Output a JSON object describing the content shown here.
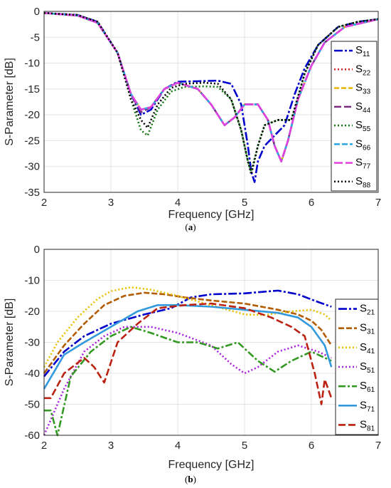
{
  "chart_data": [
    {
      "type": "line",
      "caption_label": "a",
      "xlabel": "Frequency [GHz]",
      "ylabel": "S-Parameter [dB]",
      "xlim": [
        2,
        7
      ],
      "ylim": [
        -35,
        0
      ],
      "xticks": [
        "2",
        "3",
        "4",
        "5",
        "6",
        "7"
      ],
      "yticks": [
        "0",
        "-5",
        "-10",
        "-15",
        "-20",
        "-25",
        "-30",
        "-35"
      ],
      "grid": true,
      "legend_position": "right",
      "series": [
        {
          "name": "S11",
          "legend_main": "S",
          "legend_sub": "11",
          "color": "#0000cc",
          "dash": "12,3,3,3",
          "x": [
            2,
            2.5,
            2.8,
            3.1,
            3.3,
            3.45,
            3.6,
            3.8,
            4.0,
            4.3,
            4.6,
            4.8,
            4.95,
            5.05,
            5.1,
            5.15,
            5.2,
            5.3,
            5.45,
            5.6,
            5.75,
            5.9,
            6.1,
            6.4,
            6.7,
            7.0
          ],
          "y": [
            -0.3,
            -0.7,
            -2,
            -8,
            -16,
            -20,
            -19,
            -15,
            -13.6,
            -13.5,
            -13.4,
            -14,
            -18,
            -26,
            -31,
            -33,
            -29,
            -26,
            -24,
            -22,
            -16,
            -11,
            -6.5,
            -3,
            -2,
            -1.5
          ]
        },
        {
          "name": "S22",
          "legend_main": "S",
          "legend_sub": "22",
          "color": "#cc2222",
          "dash": "2,3",
          "x": [
            2,
            2.5,
            2.8,
            3.1,
            3.3,
            3.45,
            3.6,
            3.8,
            4.0,
            4.3,
            4.5,
            4.7,
            4.85,
            5.0,
            5.2,
            5.35,
            5.45,
            5.55,
            5.65,
            5.8,
            6.0,
            6.2,
            6.5,
            7.0
          ],
          "y": [
            -0.3,
            -0.8,
            -2.2,
            -8,
            -16,
            -19,
            -18.5,
            -15,
            -13.8,
            -15,
            -18,
            -22,
            -20.5,
            -18,
            -18,
            -21,
            -26,
            -29,
            -25,
            -17,
            -10.5,
            -6,
            -3,
            -1.5
          ]
        },
        {
          "name": "S33",
          "legend_main": "S",
          "legend_sub": "33",
          "color": "#e8b400",
          "dash": "7,3",
          "x": [
            2,
            2.5,
            2.8,
            3.1,
            3.3,
            3.45,
            3.6,
            3.8,
            4.0,
            4.3,
            4.5,
            4.7,
            4.85,
            5.0,
            5.2,
            5.35,
            5.45,
            5.55,
            5.65,
            5.8,
            6.0,
            6.2,
            6.5,
            7.0
          ],
          "y": [
            -0.3,
            -0.8,
            -2.2,
            -8,
            -16,
            -19,
            -18.5,
            -15,
            -13.8,
            -15,
            -18,
            -22,
            -20.5,
            -18,
            -18,
            -21,
            -26,
            -29,
            -25,
            -17,
            -10.5,
            -6,
            -3,
            -1.5
          ]
        },
        {
          "name": "S44",
          "legend_main": "S",
          "legend_sub": "44",
          "color": "#7a2a80",
          "dash": "10,4",
          "x": [
            2,
            2.5,
            2.8,
            3.1,
            3.3,
            3.45,
            3.6,
            3.8,
            4.0,
            4.3,
            4.5,
            4.7,
            4.85,
            5.0,
            5.2,
            5.35,
            5.45,
            5.55,
            5.65,
            5.8,
            6.0,
            6.2,
            6.5,
            7.0
          ],
          "y": [
            -0.3,
            -0.8,
            -2.2,
            -8,
            -16,
            -19.5,
            -18.5,
            -15,
            -13.8,
            -15,
            -18,
            -22,
            -20.5,
            -18,
            -18,
            -21,
            -26,
            -29,
            -25,
            -17,
            -10.5,
            -6,
            -3,
            -1.5
          ]
        },
        {
          "name": "S55",
          "legend_main": "S",
          "legend_sub": "55",
          "color": "#117711",
          "dash": "2,3",
          "x": [
            2,
            2.5,
            2.8,
            3.1,
            3.3,
            3.45,
            3.55,
            3.7,
            3.9,
            4.1,
            4.4,
            4.6,
            4.8,
            4.95,
            5.05,
            5.1,
            5.2,
            5.3,
            5.5,
            5.7,
            5.9,
            6.1,
            6.4,
            6.7,
            7.0
          ],
          "y": [
            -0.3,
            -0.7,
            -2,
            -8,
            -17,
            -23,
            -24,
            -19,
            -15.5,
            -14.6,
            -14.5,
            -14.6,
            -17,
            -23,
            -29,
            -31,
            -26,
            -22,
            -21,
            -21,
            -12,
            -6.5,
            -3,
            -2,
            -1.5
          ]
        },
        {
          "name": "S66",
          "legend_main": "S",
          "legend_sub": "66",
          "color": "#2aa8e0",
          "dash": "8,3",
          "x": [
            2,
            2.5,
            2.8,
            3.1,
            3.3,
            3.45,
            3.6,
            3.8,
            4.0,
            4.3,
            4.5,
            4.7,
            4.85,
            5.0,
            5.2,
            5.35,
            5.45,
            5.55,
            5.65,
            5.8,
            6.0,
            6.2,
            6.5,
            7.0
          ],
          "y": [
            -0.3,
            -0.8,
            -2.2,
            -8,
            -16,
            -19,
            -18.5,
            -15,
            -13.8,
            -15,
            -18,
            -22,
            -20.5,
            -18,
            -18,
            -21,
            -26,
            -29,
            -25,
            -17,
            -10.5,
            -6,
            -3,
            -1.5
          ]
        },
        {
          "name": "S77",
          "legend_main": "S",
          "legend_sub": "77",
          "color": "#e040e0",
          "dash": "12,4",
          "x": [
            2,
            2.5,
            2.8,
            3.1,
            3.3,
            3.45,
            3.6,
            3.8,
            4.0,
            4.3,
            4.5,
            4.7,
            4.85,
            5.0,
            5.2,
            5.35,
            5.45,
            5.55,
            5.65,
            5.8,
            6.0,
            6.2,
            6.5,
            7.0
          ],
          "y": [
            -0.3,
            -0.8,
            -2.2,
            -8,
            -16,
            -19,
            -18.5,
            -15,
            -13.8,
            -15,
            -18,
            -22,
            -20.5,
            -18,
            -18,
            -21,
            -26,
            -29,
            -25,
            -17,
            -10.5,
            -6,
            -3,
            -1.5
          ]
        },
        {
          "name": "S88",
          "legend_main": "S",
          "legend_sub": "88",
          "color": "#000000",
          "dash": "2,3",
          "x": [
            2,
            2.5,
            2.8,
            3.1,
            3.3,
            3.45,
            3.55,
            3.7,
            3.9,
            4.1,
            4.4,
            4.6,
            4.8,
            4.95,
            5.05,
            5.1,
            5.2,
            5.3,
            5.5,
            5.7,
            5.9,
            6.1,
            6.4,
            6.7,
            7.0
          ],
          "y": [
            -0.3,
            -0.7,
            -2,
            -8,
            -17,
            -21,
            -22.5,
            -18,
            -14.8,
            -14,
            -13.8,
            -14,
            -17,
            -23,
            -29,
            -31.5,
            -26,
            -22,
            -21,
            -21,
            -12,
            -6.5,
            -3,
            -2,
            -1.5
          ]
        }
      ]
    },
    {
      "type": "line",
      "caption_label": "b",
      "xlabel": "Frequency [GHz]",
      "ylabel": "S-Parameter [dB]",
      "xlim": [
        2,
        7
      ],
      "ylim": [
        -60,
        0
      ],
      "xticks": [
        "2",
        "3",
        "4",
        "5",
        "6",
        "7"
      ],
      "yticks": [
        "0",
        "-10",
        "-20",
        "-30",
        "-40",
        "-50",
        "-60"
      ],
      "grid": true,
      "legend_position": "right",
      "series": [
        {
          "name": "S21",
          "legend_main": "S",
          "legend_sub": "21",
          "color": "#0000cc",
          "dash": "12,3,3,3",
          "x": [
            2,
            2.3,
            2.6,
            3.0,
            3.5,
            3.9,
            4.2,
            4.5,
            5.0,
            5.5,
            5.8,
            6.1,
            6.3
          ],
          "y": [
            -41,
            -33,
            -28,
            -24,
            -21,
            -19,
            -15.5,
            -14.5,
            -14.2,
            -13.3,
            -14.5,
            -17,
            -18.5
          ]
        },
        {
          "name": "S31",
          "legend_main": "S",
          "legend_sub": "31",
          "color": "#b35c00",
          "dash": "8,3",
          "x": [
            2,
            2.3,
            2.6,
            2.9,
            3.2,
            3.5,
            3.8,
            4.1,
            4.5,
            5.0,
            5.5,
            5.8,
            6.0,
            6.15,
            6.3
          ],
          "y": [
            -40,
            -31,
            -24,
            -18,
            -15,
            -14,
            -14.5,
            -15.5,
            -16.5,
            -17.5,
            -19.5,
            -21,
            -23,
            -26,
            -31
          ]
        },
        {
          "name": "S41",
          "legend_main": "S",
          "legend_sub": "41",
          "color": "#e8c000",
          "dash": "2,3",
          "x": [
            2,
            2.2,
            2.5,
            2.8,
            3.0,
            3.3,
            3.6,
            4.0,
            4.5,
            5.0,
            5.3,
            5.7,
            6.0,
            6.2,
            6.3
          ],
          "y": [
            -38,
            -30,
            -22,
            -16,
            -13.5,
            -12.2,
            -13,
            -15,
            -18,
            -21,
            -21.2,
            -20,
            -19.5,
            -21,
            -23
          ]
        },
        {
          "name": "S51",
          "legend_main": "S",
          "legend_sub": "51",
          "color": "#aa22dd",
          "dash": "2,3",
          "x": [
            2,
            2.3,
            2.6,
            2.9,
            3.2,
            3.6,
            4.0,
            4.5,
            4.8,
            5.0,
            5.2,
            5.5,
            5.8,
            6.1,
            6.3
          ],
          "y": [
            -60,
            -45,
            -33,
            -28,
            -25,
            -25,
            -27,
            -31,
            -37,
            -40,
            -38,
            -33,
            -31,
            -33,
            -35
          ]
        },
        {
          "name": "S61",
          "legend_main": "S",
          "legend_sub": "61",
          "color": "#339922",
          "dash": "10,3,3,3",
          "x": [
            2,
            2.1,
            2.2,
            2.4,
            2.7,
            3.0,
            3.3,
            3.6,
            4.0,
            4.3,
            4.6,
            4.9,
            5.2,
            5.45,
            5.7,
            6.0,
            6.3
          ],
          "y": [
            -52,
            -52,
            -60,
            -41,
            -33,
            -28,
            -25,
            -27,
            -30,
            -30,
            -32,
            -30,
            -36,
            -39.5,
            -36,
            -33,
            -36
          ]
        },
        {
          "name": "S71",
          "legend_main": "S",
          "legend_sub": "71",
          "color": "#3399dd",
          "dash": "",
          "x": [
            2,
            2.3,
            2.6,
            3.0,
            3.4,
            3.7,
            4.0,
            4.5,
            5.0,
            5.5,
            5.8,
            6.0,
            6.2,
            6.3
          ],
          "y": [
            -45,
            -34,
            -30,
            -25,
            -20,
            -18,
            -18,
            -18.5,
            -19.5,
            -20.5,
            -22,
            -25,
            -31,
            -38
          ]
        },
        {
          "name": "S81",
          "legend_main": "S",
          "legend_sub": "81",
          "color": "#bb2211",
          "dash": "10,4",
          "x": [
            2,
            2.1,
            2.3,
            2.6,
            2.75,
            2.9,
            3.1,
            3.4,
            3.7,
            4.1,
            4.5,
            5.0,
            5.4,
            5.7,
            5.9,
            6.05,
            6.15,
            6.2,
            6.3
          ],
          "y": [
            -48,
            -48,
            -40,
            -35,
            -38,
            -43,
            -30,
            -24,
            -19,
            -18,
            -17.5,
            -19,
            -22,
            -25,
            -28,
            -40,
            -50,
            -42,
            -48
          ]
        }
      ]
    }
  ]
}
